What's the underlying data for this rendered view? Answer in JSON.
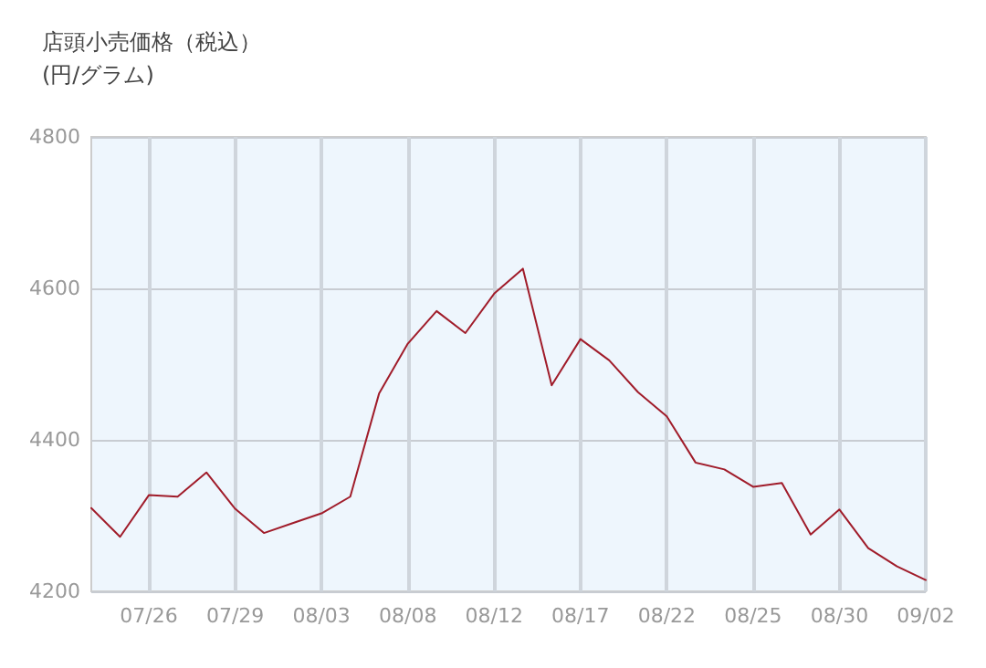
{
  "chart_data": {
    "type": "line",
    "title": "店頭小売価格（税込）",
    "subtitle": "(円/グラム)",
    "categories": [
      null,
      null,
      "07/26",
      null,
      null,
      "07/29",
      null,
      null,
      "08/03",
      null,
      null,
      "08/08",
      null,
      null,
      "08/12",
      null,
      null,
      "08/17",
      null,
      null,
      "08/22",
      null,
      null,
      "08/25",
      null,
      null,
      "08/30",
      null,
      null,
      "09/02"
    ],
    "series": [
      {
        "color": "#a01c2a",
        "values": [
          4310,
          4272,
          4327,
          4325,
          4357,
          4309,
          4277,
          4290,
          4303,
          4325,
          4461,
          4527,
          4570,
          4541,
          4593,
          4626,
          4472,
          4533,
          4505,
          4463,
          4431,
          4370,
          4361,
          4338,
          4343,
          4275,
          4308,
          4257,
          4233,
          4215
        ]
      }
    ],
    "ylim": [
      4200,
      4800
    ],
    "yticks": [
      4200,
      4400,
      4600,
      4800
    ],
    "grid": true,
    "marker": "none",
    "line_style": "solid"
  }
}
